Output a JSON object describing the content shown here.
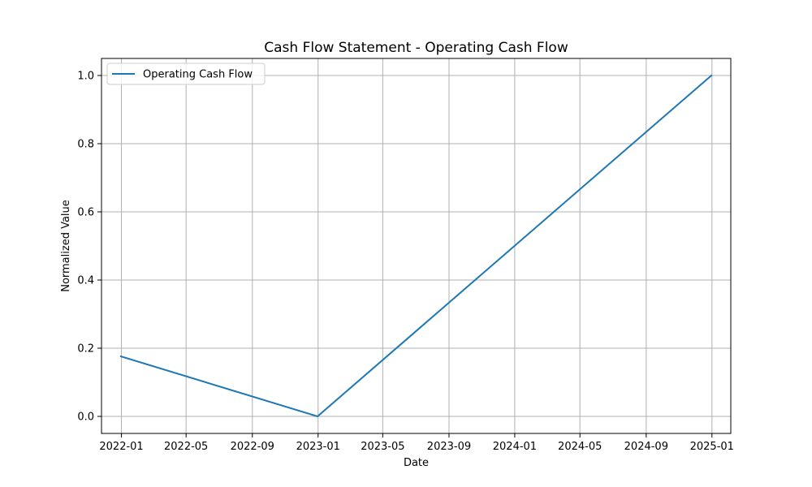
{
  "chart_data": {
    "type": "line",
    "title": "Cash Flow Statement - Operating Cash Flow",
    "xlabel": "Date",
    "ylabel": "Normalized Value",
    "x": [
      "2021-12-31",
      "2022-12-31",
      "2024-12-31"
    ],
    "series": [
      {
        "name": "Operating Cash Flow",
        "values": [
          0.176,
          0.0,
          1.0
        ],
        "color": "#1f77b4"
      }
    ],
    "xlim": [
      "2021-11-25",
      "2025-02-05"
    ],
    "ylim": [
      -0.05,
      1.05
    ],
    "x_ticks": [
      {
        "date": "2022-01-01",
        "label": "2022-01"
      },
      {
        "date": "2022-05-01",
        "label": "2022-05"
      },
      {
        "date": "2022-09-01",
        "label": "2022-09"
      },
      {
        "date": "2023-01-01",
        "label": "2023-01"
      },
      {
        "date": "2023-05-01",
        "label": "2023-05"
      },
      {
        "date": "2023-09-01",
        "label": "2023-09"
      },
      {
        "date": "2024-01-01",
        "label": "2024-01"
      },
      {
        "date": "2024-05-01",
        "label": "2024-05"
      },
      {
        "date": "2024-09-01",
        "label": "2024-09"
      },
      {
        "date": "2025-01-01",
        "label": "2025-01"
      }
    ],
    "y_ticks": [
      {
        "value": 0.0,
        "label": "0.0"
      },
      {
        "value": 0.2,
        "label": "0.2"
      },
      {
        "value": 0.4,
        "label": "0.4"
      },
      {
        "value": 0.6,
        "label": "0.6"
      },
      {
        "value": 0.8,
        "label": "0.8"
      },
      {
        "value": 1.0,
        "label": "1.0"
      }
    ],
    "grid": true,
    "legend_position": "top-left"
  }
}
